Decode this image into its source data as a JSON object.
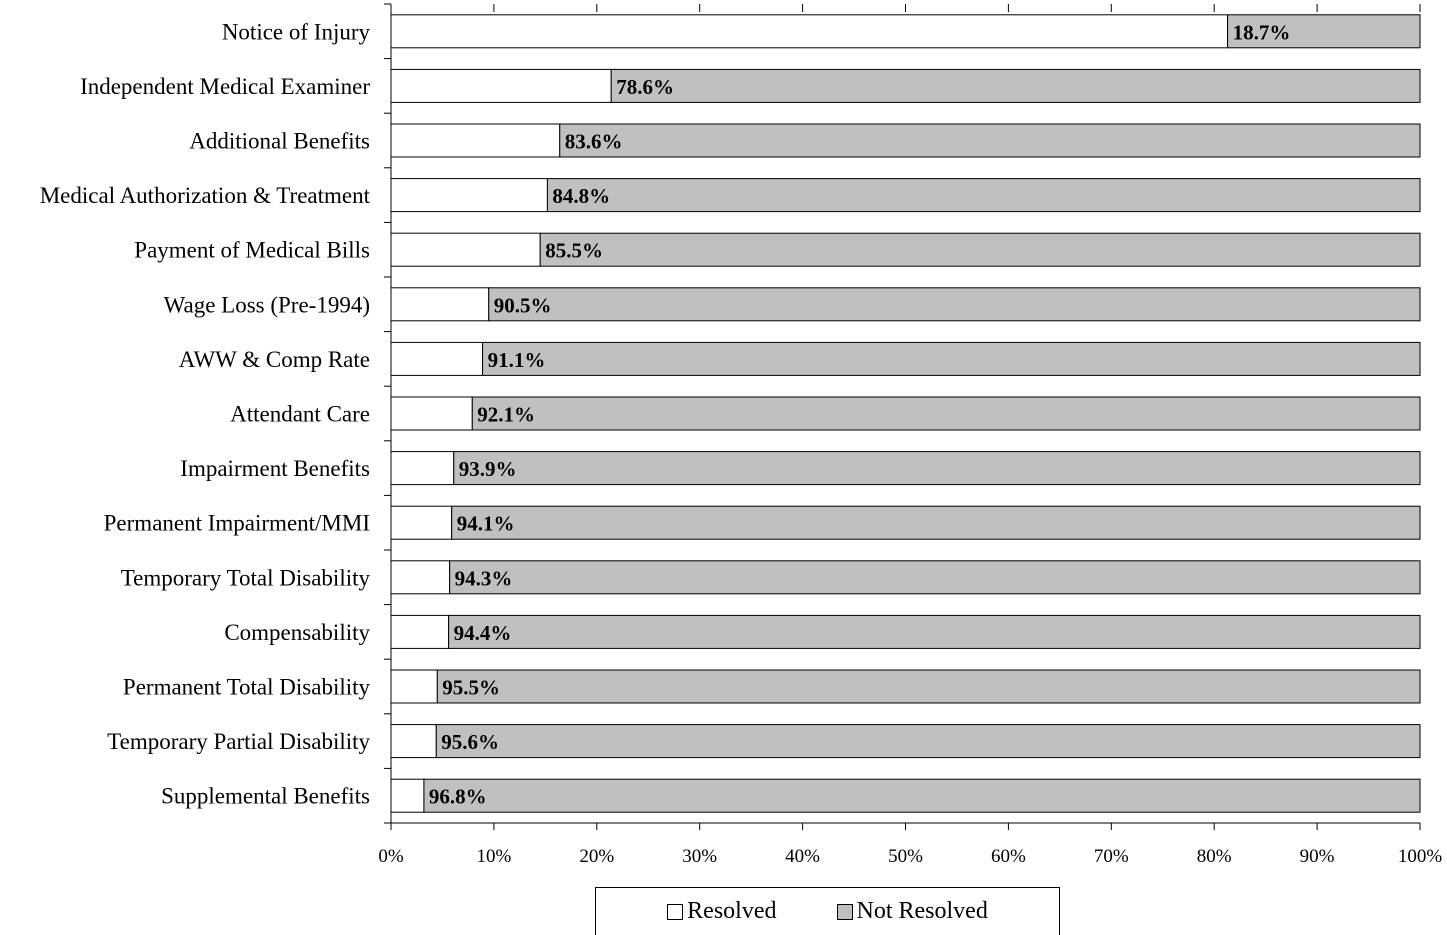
{
  "chart_data": {
    "type": "bar",
    "orientation": "horizontal",
    "stacked": true,
    "percent_stacked": true,
    "categories": [
      "Notice of Injury",
      "Independent Medical Examiner",
      "Additional Benefits",
      "Medical Authorization & Treatment",
      "Payment of Medical Bills",
      "Wage Loss (Pre-1994)",
      "AWW & Comp Rate",
      "Attendant Care",
      "Impairment Benefits",
      "Permanent Impairment/MMI",
      "Temporary Total Disability",
      "Compensability",
      "Permanent Total Disability",
      "Temporary Partial Disability",
      "Supplemental Benefits"
    ],
    "series": [
      {
        "name": "Resolved",
        "color": "#ffffff",
        "values": [
          81.3,
          21.4,
          16.4,
          15.2,
          14.5,
          9.5,
          8.9,
          7.9,
          6.1,
          5.9,
          5.7,
          5.6,
          4.5,
          4.4,
          3.2
        ]
      },
      {
        "name": "Not Resolved",
        "color": "#c0c0c0",
        "values": [
          18.7,
          78.6,
          83.6,
          84.8,
          85.5,
          90.5,
          91.1,
          92.1,
          93.9,
          94.1,
          94.3,
          94.4,
          95.5,
          95.6,
          96.8
        ]
      }
    ],
    "data_labels": [
      "18.7%",
      "78.6%",
      "83.6%",
      "84.8%",
      "85.5%",
      "90.5%",
      "91.1%",
      "92.1%",
      "93.9%",
      "94.1%",
      "94.3%",
      "94.4%",
      "95.5%",
      "95.6%",
      "96.8%"
    ],
    "x_ticks": [
      "0%",
      "10%",
      "20%",
      "30%",
      "40%",
      "50%",
      "60%",
      "70%",
      "80%",
      "90%",
      "100%"
    ],
    "xlim": [
      0,
      100
    ],
    "grid": false,
    "legend_position": "bottom"
  }
}
